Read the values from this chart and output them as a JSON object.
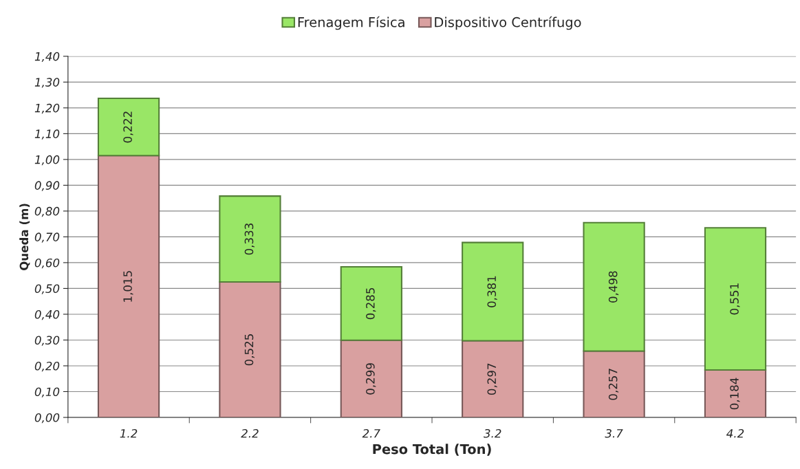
{
  "chart_data": {
    "type": "bar",
    "stacked": true,
    "xlabel": "Peso Total (Ton)",
    "ylabel": "Queda (m)",
    "categories": [
      "1.2",
      "2.2",
      "2.7",
      "3.2",
      "3.7",
      "4.2"
    ],
    "series": [
      {
        "name": "Dispositivo Centrífugo",
        "color": "#d9a0a0",
        "values": [
          1.015,
          0.525,
          0.299,
          0.297,
          0.257,
          0.184
        ],
        "value_labels": [
          "1,015",
          "0,525",
          "0,299",
          "0,297",
          "0,257",
          "0,184"
        ]
      },
      {
        "name": "Frenagem Física",
        "color": "#99e666",
        "values": [
          0.222,
          0.333,
          0.285,
          0.381,
          0.498,
          0.551
        ],
        "value_labels": [
          "0,222",
          "0,333",
          "0,285",
          "0,381",
          "0,498",
          "0,551"
        ]
      }
    ],
    "ylim": [
      0,
      1.4
    ],
    "yticks": [
      {
        "value": 0,
        "label": "0,00"
      },
      {
        "value": 0.1,
        "label": "0,10"
      },
      {
        "value": 0.2,
        "label": "0,20"
      },
      {
        "value": 0.3,
        "label": "0,30"
      },
      {
        "value": 0.4,
        "label": "0,40"
      },
      {
        "value": 0.5,
        "label": "0,50"
      },
      {
        "value": 0.6,
        "label": "0,60"
      },
      {
        "value": 0.7,
        "label": "0,70"
      },
      {
        "value": 0.8,
        "label": "0,80"
      },
      {
        "value": 0.9,
        "label": "0,90"
      },
      {
        "value": 1.0,
        "label": "1,00"
      },
      {
        "value": 1.1,
        "label": "1,10"
      },
      {
        "value": 1.2,
        "label": "1,20"
      },
      {
        "value": 1.3,
        "label": "1,30"
      },
      {
        "value": 1.4,
        "label": "1,40"
      }
    ],
    "grid": "y",
    "legend": "top"
  }
}
